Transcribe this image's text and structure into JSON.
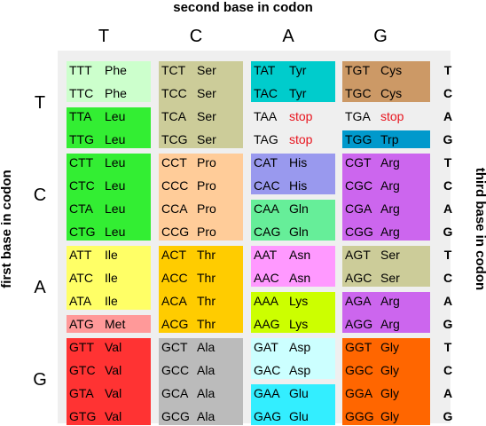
{
  "titles": {
    "top": "second base in codon",
    "left": "first base in codon",
    "right": "third base in codon"
  },
  "bases": [
    "T",
    "C",
    "A",
    "G"
  ],
  "third_bases": [
    "T",
    "C",
    "A",
    "G"
  ],
  "codons": [
    [
      [
        {
          "codon": "TTT",
          "aa": "Phe",
          "color": "#ccffcc"
        },
        {
          "codon": "TTC",
          "aa": "Phe",
          "color": "#ccffcc"
        },
        {
          "codon": "TTA",
          "aa": "Leu",
          "color": "#33ee33"
        },
        {
          "codon": "TTG",
          "aa": "Leu",
          "color": "#33ee33"
        }
      ],
      [
        {
          "codon": "TCT",
          "aa": "Ser",
          "color": "#cccc99"
        },
        {
          "codon": "TCC",
          "aa": "Ser",
          "color": "#cccc99"
        },
        {
          "codon": "TCA",
          "aa": "Ser",
          "color": "#cccc99"
        },
        {
          "codon": "TCG",
          "aa": "Ser",
          "color": "#cccc99"
        }
      ],
      [
        {
          "codon": "TAT",
          "aa": "Tyr",
          "color": "#00cccc"
        },
        {
          "codon": "TAC",
          "aa": "Tyr",
          "color": "#00cccc"
        },
        {
          "codon": "TAA",
          "aa": "stop",
          "color": "",
          "stop": true
        },
        {
          "codon": "TAG",
          "aa": "stop",
          "color": "",
          "stop": true
        }
      ],
      [
        {
          "codon": "TGT",
          "aa": "Cys",
          "color": "#cc9966"
        },
        {
          "codon": "TGC",
          "aa": "Cys",
          "color": "#cc9966"
        },
        {
          "codon": "TGA",
          "aa": "stop",
          "color": "",
          "stop": true
        },
        {
          "codon": "TGG",
          "aa": "Trp",
          "color": "#0099cc"
        }
      ]
    ],
    [
      [
        {
          "codon": "CTT",
          "aa": "Leu",
          "color": "#33ee33"
        },
        {
          "codon": "CTC",
          "aa": "Leu",
          "color": "#33ee33"
        },
        {
          "codon": "CTA",
          "aa": "Leu",
          "color": "#33ee33"
        },
        {
          "codon": "CTG",
          "aa": "Leu",
          "color": "#33ee33"
        }
      ],
      [
        {
          "codon": "CCT",
          "aa": "Pro",
          "color": "#ffcc99"
        },
        {
          "codon": "CCC",
          "aa": "Pro",
          "color": "#ffcc99"
        },
        {
          "codon": "CCA",
          "aa": "Pro",
          "color": "#ffcc99"
        },
        {
          "codon": "CCG",
          "aa": "Pro",
          "color": "#ffcc99"
        }
      ],
      [
        {
          "codon": "CAT",
          "aa": "His",
          "color": "#9999ee"
        },
        {
          "codon": "CAC",
          "aa": "His",
          "color": "#9999ee"
        },
        {
          "codon": "CAA",
          "aa": "Gln",
          "color": "#66ee99"
        },
        {
          "codon": "CAG",
          "aa": "Gln",
          "color": "#66ee99"
        }
      ],
      [
        {
          "codon": "CGT",
          "aa": "Arg",
          "color": "#cc66ee"
        },
        {
          "codon": "CGC",
          "aa": "Arg",
          "color": "#cc66ee"
        },
        {
          "codon": "CGA",
          "aa": "Arg",
          "color": "#cc66ee"
        },
        {
          "codon": "CGG",
          "aa": "Arg",
          "color": "#cc66ee"
        }
      ]
    ],
    [
      [
        {
          "codon": "ATT",
          "aa": "Ile",
          "color": "#ffff66"
        },
        {
          "codon": "ATC",
          "aa": "Ile",
          "color": "#ffff66"
        },
        {
          "codon": "ATA",
          "aa": "Ile",
          "color": "#ffff66"
        },
        {
          "codon": "ATG",
          "aa": "Met",
          "color": "#ff9999"
        }
      ],
      [
        {
          "codon": "ACT",
          "aa": "Thr",
          "color": "#ffcc00"
        },
        {
          "codon": "ACC",
          "aa": "Thr",
          "color": "#ffcc00"
        },
        {
          "codon": "ACA",
          "aa": "Thr",
          "color": "#ffcc00"
        },
        {
          "codon": "ACG",
          "aa": "Thr",
          "color": "#ffcc00"
        }
      ],
      [
        {
          "codon": "AAT",
          "aa": "Asn",
          "color": "#ff99ff"
        },
        {
          "codon": "AAC",
          "aa": "Asn",
          "color": "#ff99ff"
        },
        {
          "codon": "AAA",
          "aa": "Lys",
          "color": "#ccff00"
        },
        {
          "codon": "AAG",
          "aa": "Lys",
          "color": "#ccff00"
        }
      ],
      [
        {
          "codon": "AGT",
          "aa": "Ser",
          "color": "#cccc99"
        },
        {
          "codon": "AGC",
          "aa": "Ser",
          "color": "#cccc99"
        },
        {
          "codon": "AGA",
          "aa": "Arg",
          "color": "#cc66ee"
        },
        {
          "codon": "AGG",
          "aa": "Arg",
          "color": "#cc66ee"
        }
      ]
    ],
    [
      [
        {
          "codon": "GTT",
          "aa": "Val",
          "color": "#ff3333"
        },
        {
          "codon": "GTC",
          "aa": "Val",
          "color": "#ff3333"
        },
        {
          "codon": "GTA",
          "aa": "Val",
          "color": "#ff3333"
        },
        {
          "codon": "GTG",
          "aa": "Val",
          "color": "#ff3333"
        }
      ],
      [
        {
          "codon": "GCT",
          "aa": "Ala",
          "color": "#bbbbbb"
        },
        {
          "codon": "GCC",
          "aa": "Ala",
          "color": "#bbbbbb"
        },
        {
          "codon": "GCA",
          "aa": "Ala",
          "color": "#bbbbbb"
        },
        {
          "codon": "GCG",
          "aa": "Ala",
          "color": "#bbbbbb"
        }
      ],
      [
        {
          "codon": "GAT",
          "aa": "Asp",
          "color": "#ccffff"
        },
        {
          "codon": "GAC",
          "aa": "Asp",
          "color": "#ccffff"
        },
        {
          "codon": "GAA",
          "aa": "Glu",
          "color": "#33eeff"
        },
        {
          "codon": "GAG",
          "aa": "Glu",
          "color": "#33eeff"
        }
      ],
      [
        {
          "codon": "GGT",
          "aa": "Gly",
          "color": "#ff6600"
        },
        {
          "codon": "GGC",
          "aa": "Gly",
          "color": "#ff6600"
        },
        {
          "codon": "GGA",
          "aa": "Gly",
          "color": "#ff6600"
        },
        {
          "codon": "GGG",
          "aa": "Gly",
          "color": "#ff6600"
        }
      ]
    ]
  ]
}
